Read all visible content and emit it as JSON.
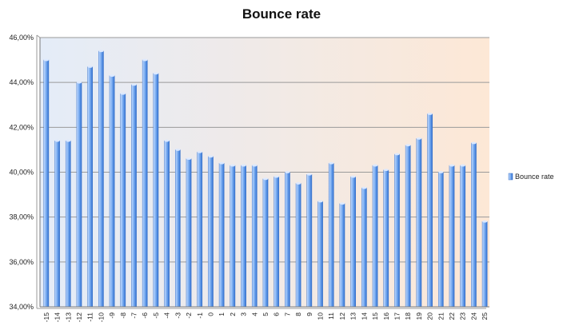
{
  "chart_data": {
    "type": "bar",
    "title": "Bounce rate",
    "series_name": "Bounce rate",
    "legend_position": "right",
    "grid": true,
    "ylim": [
      34,
      46
    ],
    "y_ticks": [
      "34,00%",
      "36,00%",
      "38,00%",
      "40,00%",
      "42,00%",
      "44,00%",
      "46,00%"
    ],
    "categories": [
      "-15",
      "-14",
      "-13",
      "-12",
      "-11",
      "-10",
      "-9",
      "-8",
      "-7",
      "-6",
      "-5",
      "-4",
      "-3",
      "-2",
      "-1",
      "0",
      "1",
      "2",
      "3",
      "4",
      "5",
      "6",
      "7",
      "8",
      "9",
      "10",
      "11",
      "12",
      "13",
      "14",
      "15",
      "16",
      "17",
      "18",
      "19",
      "20",
      "21",
      "22",
      "23",
      "24",
      "25"
    ],
    "values": [
      45.0,
      41.4,
      41.4,
      44.0,
      44.7,
      45.4,
      44.3,
      43.5,
      43.9,
      45.0,
      44.4,
      41.4,
      41.0,
      40.6,
      40.9,
      40.7,
      40.4,
      40.3,
      40.3,
      40.3,
      39.7,
      39.8,
      40.0,
      39.5,
      39.9,
      38.7,
      40.4,
      38.6,
      39.8,
      39.3,
      40.3,
      40.1,
      40.8,
      41.2,
      41.5,
      42.6,
      40.0,
      40.3,
      40.3,
      41.3,
      37.8
    ],
    "colors": {
      "bar_light": "#c5dcff",
      "bar_mid": "#7fb0f2",
      "bar_dark": "#2f6fd0",
      "grid": "#9a9a9a",
      "plot_left": "#e4ecf8",
      "plot_right": "#fde8d6"
    }
  }
}
